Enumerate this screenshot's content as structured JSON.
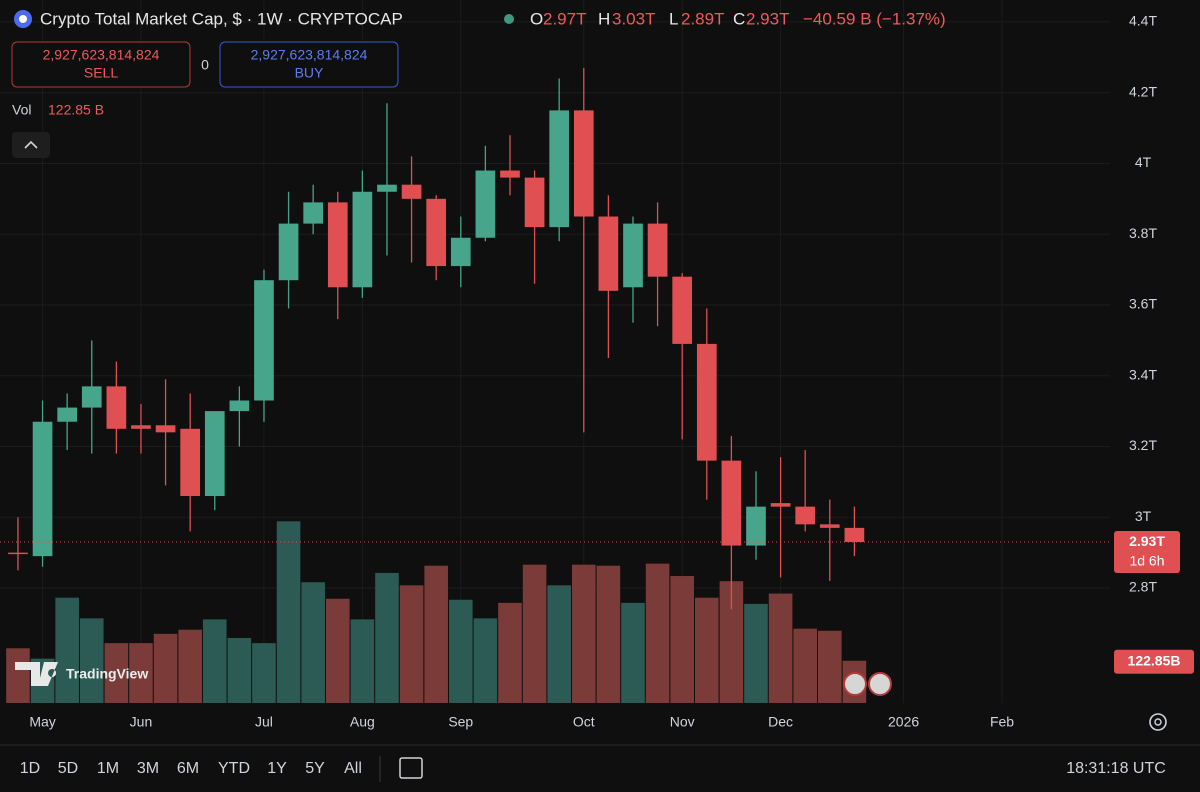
{
  "header": {
    "symbol": "Crypto Total Market Cap, $ · 1W · CRYPTOCAP",
    "ohlc": [
      {
        "label": "O",
        "value": "2.97T"
      },
      {
        "label": "H",
        "value": "3.03T"
      },
      {
        "label": "L",
        "value": "2.89T"
      },
      {
        "label": "C",
        "value": "2.93T"
      }
    ],
    "change": "−40.59 B (−1.37%)",
    "sell": {
      "price": "2,927,623,814,824",
      "label": "SELL"
    },
    "spread": "0",
    "buy": {
      "price": "2,927,623,814,824",
      "label": "BUY"
    },
    "vol_label": "Vol",
    "vol_value": "122.85 B"
  },
  "chart_data": {
    "type": "candlestick",
    "ylim": [
      2.475,
      4.462
    ],
    "yticks": [
      {
        "value": 2.8,
        "label": "2.8T"
      },
      {
        "value": 3.0,
        "label": "3T"
      },
      {
        "value": 3.2,
        "label": "3.2T"
      },
      {
        "value": 3.4,
        "label": "3.4T"
      },
      {
        "value": 3.6,
        "label": "3.6T"
      },
      {
        "value": 3.8,
        "label": "3.8T"
      },
      {
        "value": 4.0,
        "label": "4T"
      },
      {
        "value": 4.2,
        "label": "4.2T"
      },
      {
        "value": 4.4,
        "label": "4.4T"
      }
    ],
    "xlim": [
      -0.73,
      44.39
    ],
    "xticks": [
      {
        "value": 1,
        "label": "May"
      },
      {
        "value": 5,
        "label": "Jun"
      },
      {
        "value": 10,
        "label": "Jul"
      },
      {
        "value": 14,
        "label": "Aug"
      },
      {
        "value": 18,
        "label": "Sep"
      },
      {
        "value": 23,
        "label": "Oct"
      },
      {
        "value": 27,
        "label": "Nov"
      },
      {
        "value": 31,
        "label": "Dec"
      },
      {
        "value": 36,
        "label": "2026"
      },
      {
        "value": 40,
        "label": "Feb"
      }
    ],
    "open": [
      2.9,
      2.89,
      3.27,
      3.31,
      3.37,
      3.26,
      3.26,
      3.25,
      3.06,
      3.3,
      3.33,
      3.67,
      3.83,
      3.89,
      3.65,
      3.92,
      3.94,
      3.9,
      3.71,
      3.79,
      3.98,
      3.96,
      3.82,
      4.15,
      3.85,
      3.65,
      3.83,
      3.68,
      3.49,
      3.16,
      2.92,
      3.04,
      3.03,
      2.98,
      2.97
    ],
    "high": [
      3.0,
      3.33,
      3.35,
      3.5,
      3.44,
      3.32,
      3.39,
      3.35,
      3.3,
      3.37,
      3.7,
      3.92,
      3.94,
      3.92,
      3.98,
      4.17,
      4.02,
      3.91,
      3.85,
      4.05,
      4.08,
      3.98,
      4.24,
      4.27,
      3.91,
      3.85,
      3.89,
      3.69,
      3.59,
      3.23,
      3.13,
      3.17,
      3.19,
      3.05,
      3.03
    ],
    "low": [
      2.85,
      2.86,
      3.19,
      3.18,
      3.18,
      3.18,
      3.09,
      2.96,
      3.02,
      3.2,
      3.27,
      3.59,
      3.8,
      3.56,
      3.62,
      3.74,
      3.72,
      3.67,
      3.65,
      3.78,
      3.91,
      3.66,
      3.78,
      3.24,
      3.45,
      3.55,
      3.54,
      3.22,
      3.05,
      2.74,
      2.88,
      2.83,
      2.96,
      2.82,
      2.89
    ],
    "close": [
      2.9,
      3.27,
      3.31,
      3.37,
      3.25,
      3.25,
      3.24,
      3.06,
      3.3,
      3.33,
      3.67,
      3.83,
      3.89,
      3.65,
      3.92,
      3.94,
      3.9,
      3.71,
      3.79,
      3.98,
      3.96,
      3.82,
      4.15,
      3.85,
      3.64,
      3.83,
      3.68,
      3.49,
      3.16,
      2.92,
      3.03,
      3.03,
      2.98,
      2.97,
      2.93
    ],
    "volume": [
      159,
      129,
      306,
      246,
      174,
      174,
      201,
      213,
      243,
      189,
      174,
      528,
      351,
      303,
      243,
      378,
      342,
      399,
      300,
      246,
      291,
      402,
      342,
      402,
      399,
      291,
      405,
      369,
      306,
      354,
      288,
      318,
      216,
      210,
      122.85
    ],
    "volume_ylim": [
      0,
      2043
    ],
    "up_color": "#46a58a",
    "down_color": "#e04f52",
    "volume_up_color": "#2c5b55",
    "volume_down_color": "#7b3b38",
    "price_label": "2.93T",
    "countdown": "1d 6h",
    "volume_label": "122.85B",
    "grid": true
  },
  "watermark": "TradingView",
  "toolbar": {
    "ranges": [
      "1D",
      "5D",
      "1M",
      "3M",
      "6M",
      "YTD",
      "1Y",
      "5Y",
      "All"
    ],
    "clock": "18:31:18 UTC"
  }
}
